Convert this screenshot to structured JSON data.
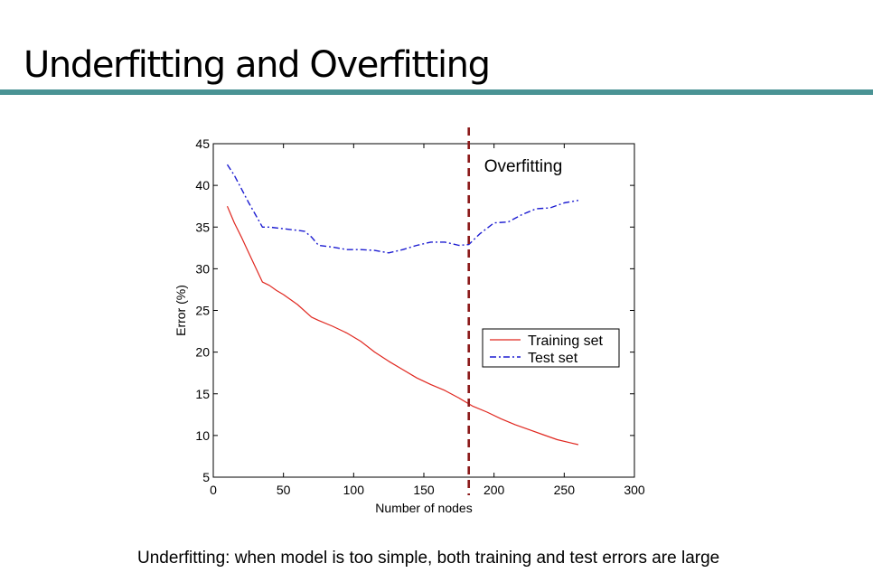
{
  "slide": {
    "title": "Underfitting and Overfitting",
    "caption": "Underfitting: when model is too simple, both training and test errors are large",
    "rule_color": "#4a9394"
  },
  "chart_data": {
    "type": "line",
    "title": "",
    "xlabel": "Number of nodes",
    "ylabel": "Error (%)",
    "xlim": [
      0,
      300
    ],
    "ylim": [
      5,
      45
    ],
    "xticks": [
      0,
      50,
      100,
      150,
      200,
      250,
      300
    ],
    "yticks": [
      5,
      10,
      15,
      20,
      25,
      30,
      35,
      40,
      45
    ],
    "grid": false,
    "legend_position": "center-right",
    "annotation": {
      "text": "Overfitting",
      "x": 182,
      "line_color": "#8b1a1a"
    },
    "series": [
      {
        "name": "Training set",
        "color": "#e0271f",
        "style": "solid",
        "x": [
          10,
          15,
          20,
          25,
          30,
          35,
          40,
          45,
          50,
          60,
          70,
          75,
          85,
          95,
          105,
          115,
          125,
          135,
          145,
          155,
          165,
          175,
          185,
          195,
          205,
          215,
          225,
          235,
          245,
          255,
          260
        ],
        "y": [
          37.5,
          35.5,
          33.8,
          32.0,
          30.2,
          28.4,
          28.0,
          27.4,
          26.9,
          25.7,
          24.2,
          23.8,
          23.1,
          22.3,
          21.3,
          20.0,
          18.9,
          17.9,
          16.9,
          16.1,
          15.4,
          14.5,
          13.5,
          12.8,
          12.0,
          11.3,
          10.7,
          10.1,
          9.5,
          9.1,
          8.9
        ]
      },
      {
        "name": "Test set",
        "color": "#1c1cd1",
        "style": "dashdot",
        "x": [
          10,
          15,
          20,
          25,
          30,
          35,
          40,
          50,
          60,
          65,
          70,
          75,
          85,
          95,
          105,
          115,
          125,
          135,
          145,
          155,
          165,
          175,
          182,
          190,
          200,
          210,
          220,
          230,
          240,
          250,
          260
        ],
        "y": [
          42.5,
          41.2,
          39.6,
          38.0,
          36.5,
          35.0,
          35.0,
          34.8,
          34.6,
          34.5,
          33.8,
          32.8,
          32.6,
          32.3,
          32.3,
          32.2,
          31.9,
          32.3,
          32.8,
          33.2,
          33.2,
          32.8,
          32.9,
          34.2,
          35.5,
          35.6,
          36.5,
          37.2,
          37.3,
          37.9,
          38.2
        ]
      }
    ]
  }
}
